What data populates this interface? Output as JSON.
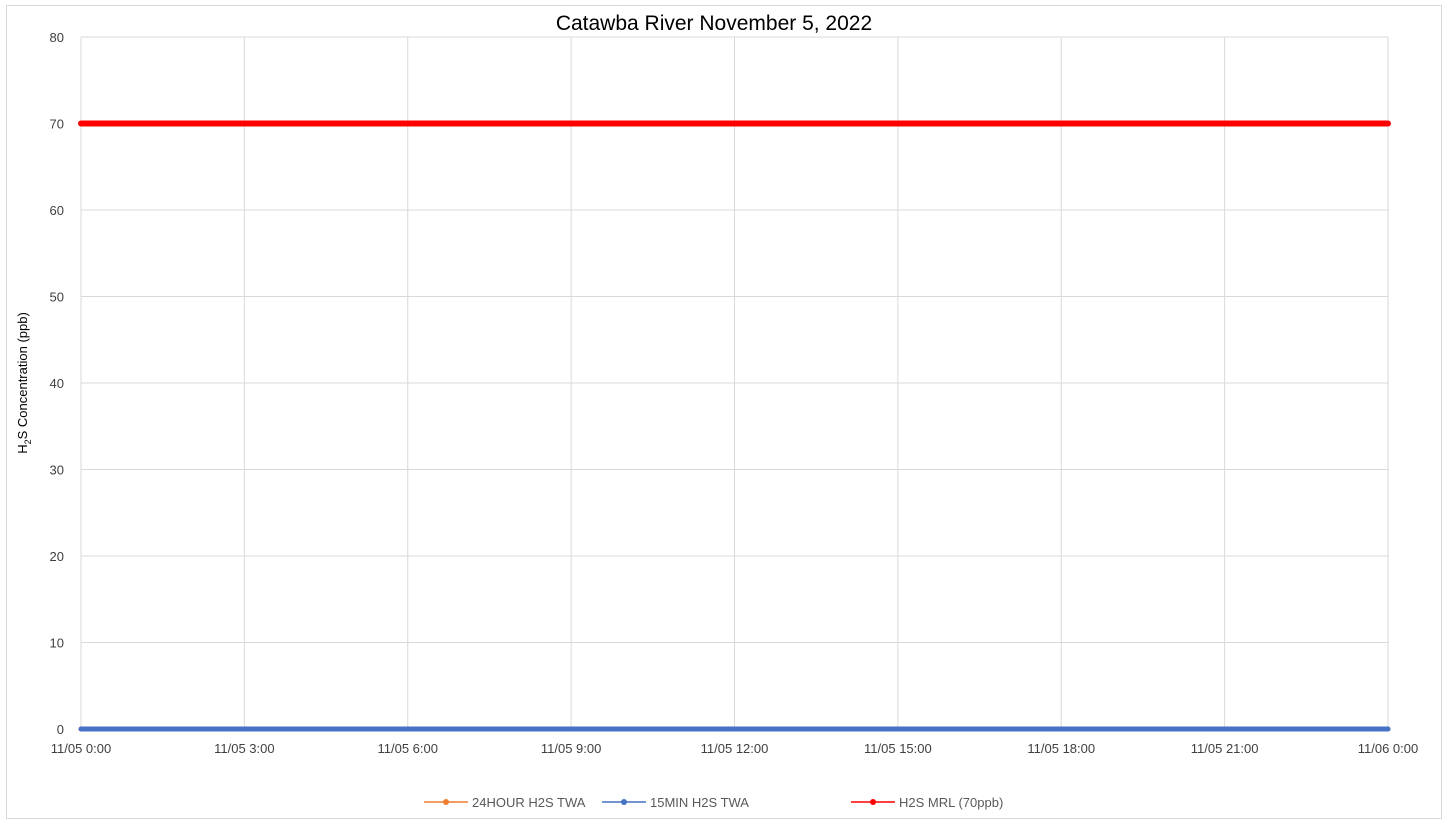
{
  "chart_data": {
    "type": "line",
    "title": "Catawba River November 5, 2022",
    "ylabel": {
      "prefix": "H",
      "subscript": "2",
      "suffix": "S Concentration (ppb)"
    },
    "xlabel": "",
    "ylim": [
      0,
      80
    ],
    "yticks": [
      0,
      10,
      20,
      30,
      40,
      50,
      60,
      70,
      80
    ],
    "x_range": [
      "11/05 0:00",
      "11/06 0:00"
    ],
    "xticks": [
      "11/05 0:00",
      "11/05 3:00",
      "11/05 6:00",
      "11/05 9:00",
      "11/05 12:00",
      "11/05 15:00",
      "11/05 18:00",
      "11/05 21:00",
      "11/06 0:00"
    ],
    "grid": true,
    "legend_position": "bottom",
    "series": [
      {
        "name": "24HOUR H2S TWA",
        "color": "#ED7D31",
        "x": [
          "11/05 0:00",
          "11/06 0:00"
        ],
        "values": [
          0,
          0
        ]
      },
      {
        "name": "15MIN H2S TWA",
        "color": "#4472C4",
        "x": [
          "11/05 0:00",
          "11/06 0:00"
        ],
        "values": [
          0,
          0
        ]
      },
      {
        "name": "H2S MRL (70ppb)",
        "color": "#FF0000",
        "x": [
          "11/05 0:00",
          "11/06 0:00"
        ],
        "values": [
          70,
          70
        ]
      }
    ]
  }
}
